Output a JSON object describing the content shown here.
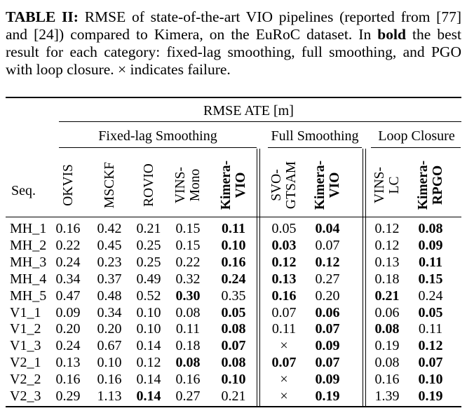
{
  "caption": {
    "label": "TABLE II:",
    "text1": " RMSE of state-of-the-art VIO pipelines (reported from [77] and [24]) compared to Kimera, on the EuRoC dataset. In ",
    "bold_word": "bold",
    "text2": " the best result for each category: fixed-lag smoothing, full smoothing, and PGO with loop closure. × indicates failure."
  },
  "header": {
    "top": "RMSE ATE [m]",
    "groups": [
      "Fixed-lag Smoothing",
      "Full Smoothing",
      "Loop Closure"
    ],
    "seq": "Seq.",
    "columns": [
      {
        "lines": [
          "OKVIS"
        ],
        "bold": false
      },
      {
        "lines": [
          "MSCKF"
        ],
        "bold": false
      },
      {
        "lines": [
          "ROVIO"
        ],
        "bold": false
      },
      {
        "lines": [
          "VINS-",
          "Mono"
        ],
        "bold": false
      },
      {
        "lines": [
          "Kimera-",
          "VIO"
        ],
        "bold": true
      },
      {
        "lines": [
          "SVO-",
          "GTSAM"
        ],
        "bold": false
      },
      {
        "lines": [
          "Kimera-",
          "VIO"
        ],
        "bold": true
      },
      {
        "lines": [
          "VINS-",
          "LC"
        ],
        "bold": false
      },
      {
        "lines": [
          "Kimera-",
          "RPGO"
        ],
        "bold": true
      }
    ]
  },
  "rows": [
    {
      "seq": "MH_1",
      "values": [
        "0.16",
        "0.42",
        "0.21",
        "0.15",
        "0.11",
        "0.05",
        "0.04",
        "0.12",
        "0.08"
      ],
      "bold": [
        false,
        false,
        false,
        false,
        true,
        false,
        true,
        false,
        true
      ]
    },
    {
      "seq": "MH_2",
      "values": [
        "0.22",
        "0.45",
        "0.25",
        "0.15",
        "0.10",
        "0.03",
        "0.07",
        "0.12",
        "0.09"
      ],
      "bold": [
        false,
        false,
        false,
        false,
        true,
        true,
        false,
        false,
        true
      ]
    },
    {
      "seq": "MH_3",
      "values": [
        "0.24",
        "0.23",
        "0.25",
        "0.22",
        "0.16",
        "0.12",
        "0.12",
        "0.13",
        "0.11"
      ],
      "bold": [
        false,
        false,
        false,
        false,
        true,
        true,
        true,
        false,
        true
      ]
    },
    {
      "seq": "MH_4",
      "values": [
        "0.34",
        "0.37",
        "0.49",
        "0.32",
        "0.24",
        "0.13",
        "0.27",
        "0.18",
        "0.15"
      ],
      "bold": [
        false,
        false,
        false,
        false,
        true,
        true,
        false,
        false,
        true
      ]
    },
    {
      "seq": "MH_5",
      "values": [
        "0.47",
        "0.48",
        "0.52",
        "0.30",
        "0.35",
        "0.16",
        "0.20",
        "0.21",
        "0.24"
      ],
      "bold": [
        false,
        false,
        false,
        true,
        false,
        true,
        false,
        true,
        false
      ]
    },
    {
      "seq": "V1_1",
      "values": [
        "0.09",
        "0.34",
        "0.10",
        "0.08",
        "0.05",
        "0.07",
        "0.06",
        "0.06",
        "0.05"
      ],
      "bold": [
        false,
        false,
        false,
        false,
        true,
        false,
        true,
        false,
        true
      ]
    },
    {
      "seq": "V1_2",
      "values": [
        "0.20",
        "0.20",
        "0.10",
        "0.11",
        "0.08",
        "0.11",
        "0.07",
        "0.08",
        "0.11"
      ],
      "bold": [
        false,
        false,
        false,
        false,
        true,
        false,
        true,
        true,
        false
      ]
    },
    {
      "seq": "V1_3",
      "values": [
        "0.24",
        "0.67",
        "0.14",
        "0.18",
        "0.07",
        "×",
        "0.09",
        "0.19",
        "0.12"
      ],
      "bold": [
        false,
        false,
        false,
        false,
        true,
        false,
        true,
        false,
        true
      ]
    },
    {
      "seq": "V2_1",
      "values": [
        "0.13",
        "0.10",
        "0.12",
        "0.08",
        "0.08",
        "0.07",
        "0.07",
        "0.08",
        "0.07"
      ],
      "bold": [
        false,
        false,
        false,
        true,
        true,
        true,
        true,
        false,
        true
      ]
    },
    {
      "seq": "V2_2",
      "values": [
        "0.16",
        "0.16",
        "0.14",
        "0.16",
        "0.10",
        "×",
        "0.09",
        "0.16",
        "0.10"
      ],
      "bold": [
        false,
        false,
        false,
        false,
        true,
        false,
        true,
        false,
        true
      ]
    },
    {
      "seq": "V2_3",
      "values": [
        "0.29",
        "1.13",
        "0.14",
        "0.27",
        "0.21",
        "×",
        "0.19",
        "1.39",
        "0.19"
      ],
      "bold": [
        false,
        false,
        true,
        false,
        false,
        false,
        true,
        false,
        true
      ]
    }
  ]
}
